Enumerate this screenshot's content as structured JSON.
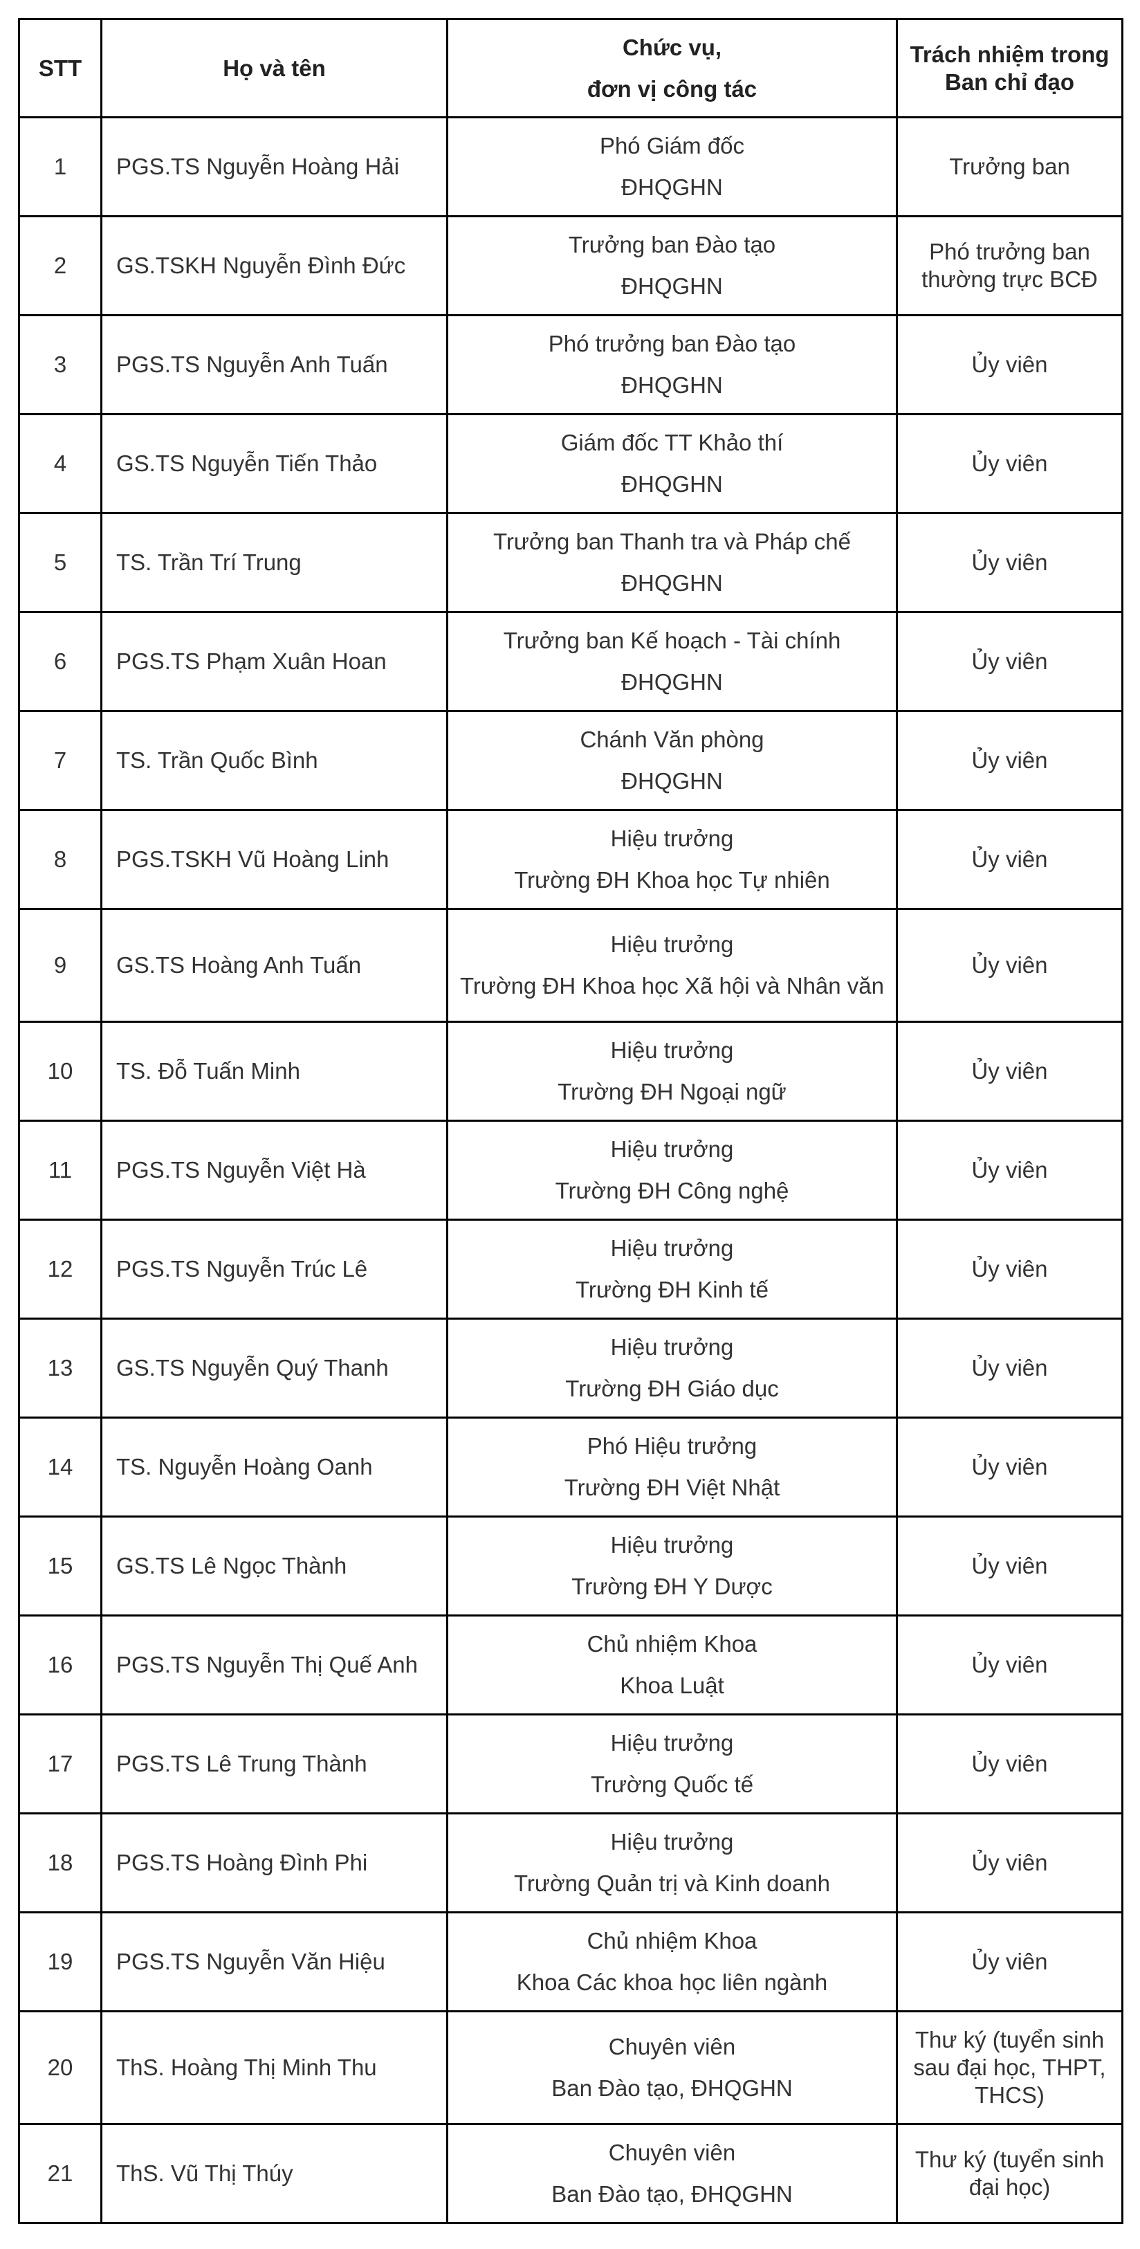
{
  "table": {
    "headers": {
      "stt": "STT",
      "name": "Họ và tên",
      "position_line1": "Chức vụ,",
      "position_line2": "đơn vị công tác",
      "role": "Trách nhiệm trong Ban chỉ đạo"
    },
    "rows": [
      {
        "stt": "1",
        "name": "PGS.TS Nguyễn Hoàng Hải",
        "position": "Phó Giám đốc",
        "unit": "ĐHQGHN",
        "role": "Trưởng ban"
      },
      {
        "stt": "2",
        "name": "GS.TSKH Nguyễn Đình Đức",
        "position": "Trưởng ban Đào tạo",
        "unit": "ĐHQGHN",
        "role": "Phó trưởng ban thường trực BCĐ"
      },
      {
        "stt": "3",
        "name": "PGS.TS Nguyễn Anh Tuấn",
        "position": "Phó trưởng ban Đào tạo",
        "unit": "ĐHQGHN",
        "role": "Ủy viên"
      },
      {
        "stt": "4",
        "name": "GS.TS Nguyễn Tiến Thảo",
        "position": "Giám đốc TT Khảo thí",
        "unit": "ĐHQGHN",
        "role": "Ủy viên"
      },
      {
        "stt": "5",
        "name": "TS. Trần Trí Trung",
        "position": "Trưởng ban Thanh tra và Pháp chế",
        "unit": "ĐHQGHN",
        "role": "Ủy viên"
      },
      {
        "stt": "6",
        "name": "PGS.TS Phạm Xuân Hoan",
        "position": "Trưởng ban Kế hoạch - Tài chính",
        "unit": "ĐHQGHN",
        "role": "Ủy viên"
      },
      {
        "stt": "7",
        "name": "TS. Trần Quốc Bình",
        "position": "Chánh Văn phòng",
        "unit": "ĐHQGHN",
        "role": "Ủy viên"
      },
      {
        "stt": "8",
        "name": "PGS.TSKH Vũ Hoàng Linh",
        "position": "Hiệu trưởng",
        "unit": "Trường ĐH Khoa học Tự nhiên",
        "role": "Ủy viên"
      },
      {
        "stt": "9",
        "name": "GS.TS Hoàng Anh Tuấn",
        "position": "Hiệu trưởng",
        "unit": "Trường ĐH Khoa học Xã hội và Nhân văn",
        "role": "Ủy viên"
      },
      {
        "stt": "10",
        "name": "TS. Đỗ Tuấn Minh",
        "position": "Hiệu trưởng",
        "unit": "Trường ĐH Ngoại ngữ",
        "role": "Ủy viên"
      },
      {
        "stt": "11",
        "name": "PGS.TS Nguyễn Việt Hà",
        "position": "Hiệu trưởng",
        "unit": "Trường ĐH Công nghệ",
        "role": "Ủy viên"
      },
      {
        "stt": "12",
        "name": "PGS.TS Nguyễn Trúc Lê",
        "position": "Hiệu trưởng",
        "unit": "Trường ĐH Kinh tế",
        "role": "Ủy viên"
      },
      {
        "stt": "13",
        "name": "GS.TS Nguyễn Quý Thanh",
        "position": "Hiệu trưởng",
        "unit": "Trường ĐH Giáo dục",
        "role": "Ủy viên"
      },
      {
        "stt": "14",
        "name": "TS. Nguyễn Hoàng Oanh",
        "position": "Phó Hiệu trưởng",
        "unit": "Trường ĐH Việt Nhật",
        "role": "Ủy viên"
      },
      {
        "stt": "15",
        "name": "GS.TS Lê Ngọc Thành",
        "position": "Hiệu trưởng",
        "unit": "Trường ĐH Y Dược",
        "role": "Ủy viên"
      },
      {
        "stt": "16",
        "name": "PGS.TS Nguyễn Thị Quế Anh",
        "position": "Chủ nhiệm Khoa",
        "unit": "Khoa Luật",
        "role": "Ủy viên"
      },
      {
        "stt": "17",
        "name": "PGS.TS Lê Trung Thành",
        "position": "Hiệu trưởng",
        "unit": "Trường Quốc tế",
        "role": "Ủy viên"
      },
      {
        "stt": "18",
        "name": "PGS.TS Hoàng Đình Phi",
        "position": "Hiệu trưởng",
        "unit": "Trường Quản trị và Kinh doanh",
        "role": "Ủy viên"
      },
      {
        "stt": "19",
        "name": "PGS.TS Nguyễn Văn Hiệu",
        "position": "Chủ nhiệm Khoa",
        "unit": "Khoa Các khoa học liên ngành",
        "role": "Ủy viên"
      },
      {
        "stt": "20",
        "name": "ThS. Hoàng Thị Minh Thu",
        "position": "Chuyên viên",
        "unit": "Ban Đào tạo, ĐHQGHN",
        "role": "Thư ký (tuyển sinh sau đại học, THPT, THCS)"
      },
      {
        "stt": "21",
        "name": "ThS. Vũ Thị Thúy",
        "position": "Chuyên viên",
        "unit": "Ban Đào tạo, ĐHQGHN",
        "role": "Thư ký (tuyển sinh đại học)"
      }
    ]
  }
}
